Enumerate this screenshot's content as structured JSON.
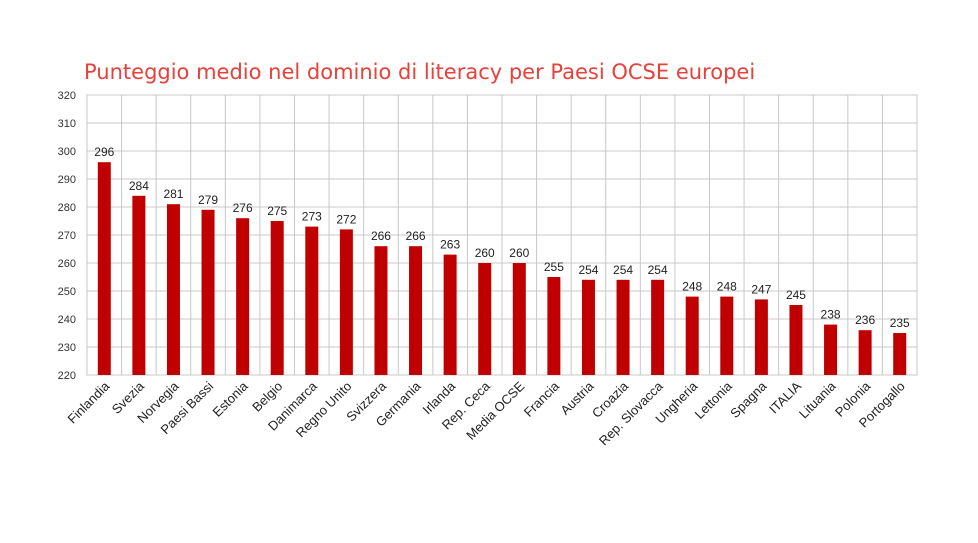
{
  "chart_data": {
    "type": "bar",
    "title": "Punteggio medio nel dominio di literacy per Paesi OCSE europei",
    "xlabel": "",
    "ylabel": "",
    "ylim": [
      220,
      320
    ],
    "yticks": [
      220,
      230,
      240,
      250,
      260,
      270,
      280,
      290,
      300,
      310,
      320
    ],
    "grid": true,
    "legend": "none",
    "bar_color": "#c00000",
    "categories": [
      "Finlandia",
      "Svezia",
      "Norvegia",
      "Paesi Bassi",
      "Estonia",
      "Belgio",
      "Danimarca",
      "Regno Unito",
      "Svizzera",
      "Germania",
      "Irlanda",
      "Rep. Ceca",
      "Media OCSE",
      "Francia",
      "Austria",
      "Croazia",
      "Rep. Slovacca",
      "Ungheria",
      "Lettonia",
      "Spagna",
      "ITALIA",
      "Lituania",
      "Polonia",
      "Portogallo"
    ],
    "values": [
      296,
      284,
      281,
      279,
      276,
      275,
      273,
      272,
      266,
      266,
      263,
      260,
      260,
      255,
      254,
      254,
      254,
      248,
      248,
      247,
      245,
      238,
      236,
      235
    ]
  }
}
